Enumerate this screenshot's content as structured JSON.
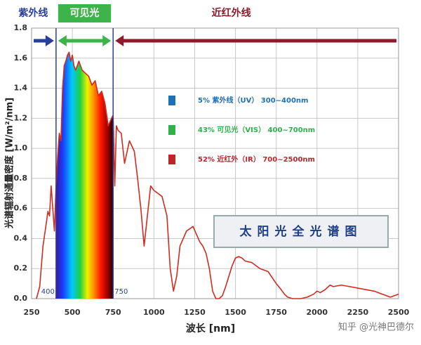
{
  "chart_data": {
    "type": "line",
    "title": "太阳光全光谱图",
    "x_label": "波长 [nm]",
    "y_label": "光谱辐射通量密度 [W/m²/nm]",
    "x": [
      280,
      300,
      320,
      340,
      350,
      360,
      370,
      380,
      390,
      400,
      410,
      420,
      430,
      440,
      450,
      460,
      470,
      480,
      490,
      500,
      510,
      520,
      540,
      560,
      580,
      600,
      620,
      640,
      660,
      680,
      700,
      720,
      740,
      750,
      760,
      770,
      780,
      800,
      820,
      850,
      880,
      900,
      920,
      940,
      960,
      980,
      1000,
      1050,
      1080,
      1100,
      1120,
      1140,
      1160,
      1200,
      1240,
      1260,
      1280,
      1300,
      1320,
      1340,
      1360,
      1380,
      1400,
      1420,
      1440,
      1460,
      1480,
      1500,
      1520,
      1540,
      1560,
      1600,
      1650,
      1700,
      1750,
      1780,
      1800,
      1820,
      1850,
      1900,
      1940,
      1980,
      2000,
      2020,
      2050,
      2080,
      2100,
      2150,
      2200,
      2250,
      2300,
      2350,
      2400,
      2450,
      2500
    ],
    "series": [
      {
        "color": "#d42a1f",
        "values": [
          0,
          0.08,
          0.35,
          0.5,
          0.58,
          0.55,
          0.75,
          0.6,
          0.45,
          0.75,
          0.95,
          1.1,
          1.05,
          1.4,
          1.55,
          1.58,
          1.62,
          1.64,
          1.58,
          1.62,
          1.55,
          1.52,
          1.58,
          1.52,
          1.5,
          1.48,
          1.42,
          1.45,
          1.35,
          1.38,
          1.3,
          1.15,
          1.2,
          1.22,
          0.75,
          1.15,
          1.12,
          1.1,
          0.9,
          1.05,
          0.98,
          0.8,
          0.6,
          0.35,
          0.55,
          0.75,
          0.72,
          0.68,
          0.55,
          0.2,
          0.05,
          0.15,
          0.35,
          0.45,
          0.48,
          0.43,
          0.38,
          0.35,
          0.3,
          0.2,
          0.05,
          0,
          0,
          0.02,
          0.08,
          0.15,
          0.22,
          0.27,
          0.28,
          0.27,
          0.25,
          0.24,
          0.2,
          0.18,
          0.1,
          0.06,
          0.03,
          0.01,
          0,
          0,
          0.01,
          0.03,
          0.05,
          0.04,
          0.06,
          0.09,
          0.08,
          0.09,
          0.08,
          0.07,
          0.06,
          0.05,
          0.03,
          0.01,
          0.03
        ]
      }
    ],
    "xlim": [
      250,
      2500
    ],
    "xticks": [
      250,
      500,
      750,
      1000,
      1250,
      1500,
      1750,
      2000,
      2250,
      2500
    ],
    "ylim": [
      0,
      1.8
    ],
    "yticks": [
      {
        "value": 0,
        "label": "0.0"
      },
      0.2,
      0.4,
      0.6,
      0.8,
      {
        "value": 1,
        "label": "1.0"
      },
      1.2,
      1.4,
      1.6,
      1.8
    ],
    "grid": true,
    "vlines": [
      400,
      750
    ],
    "bands": [
      {
        "label": "紫外线",
        "range": [
          250,
          400
        ],
        "color": "#2a3f9a",
        "arrow": "right"
      },
      {
        "label": "可见光",
        "range": [
          400,
          750
        ],
        "color": "#3cb44a",
        "arrow": "both"
      },
      {
        "label": "近红外线",
        "range": [
          750,
          2500
        ],
        "color": "#8e1b2c",
        "arrow": "left"
      }
    ],
    "legend": [
      {
        "text": "5%  紫外线（UV） 300~400nm",
        "color": "#1f6fb5"
      },
      {
        "text": "43% 可见光（VIS） 400~700nm",
        "color": "#2db34a"
      },
      {
        "text": "52% 近红外（IR） 700~2500nm",
        "color": "#c0242b"
      }
    ],
    "watermark": "知乎 @光神巴德尔"
  }
}
